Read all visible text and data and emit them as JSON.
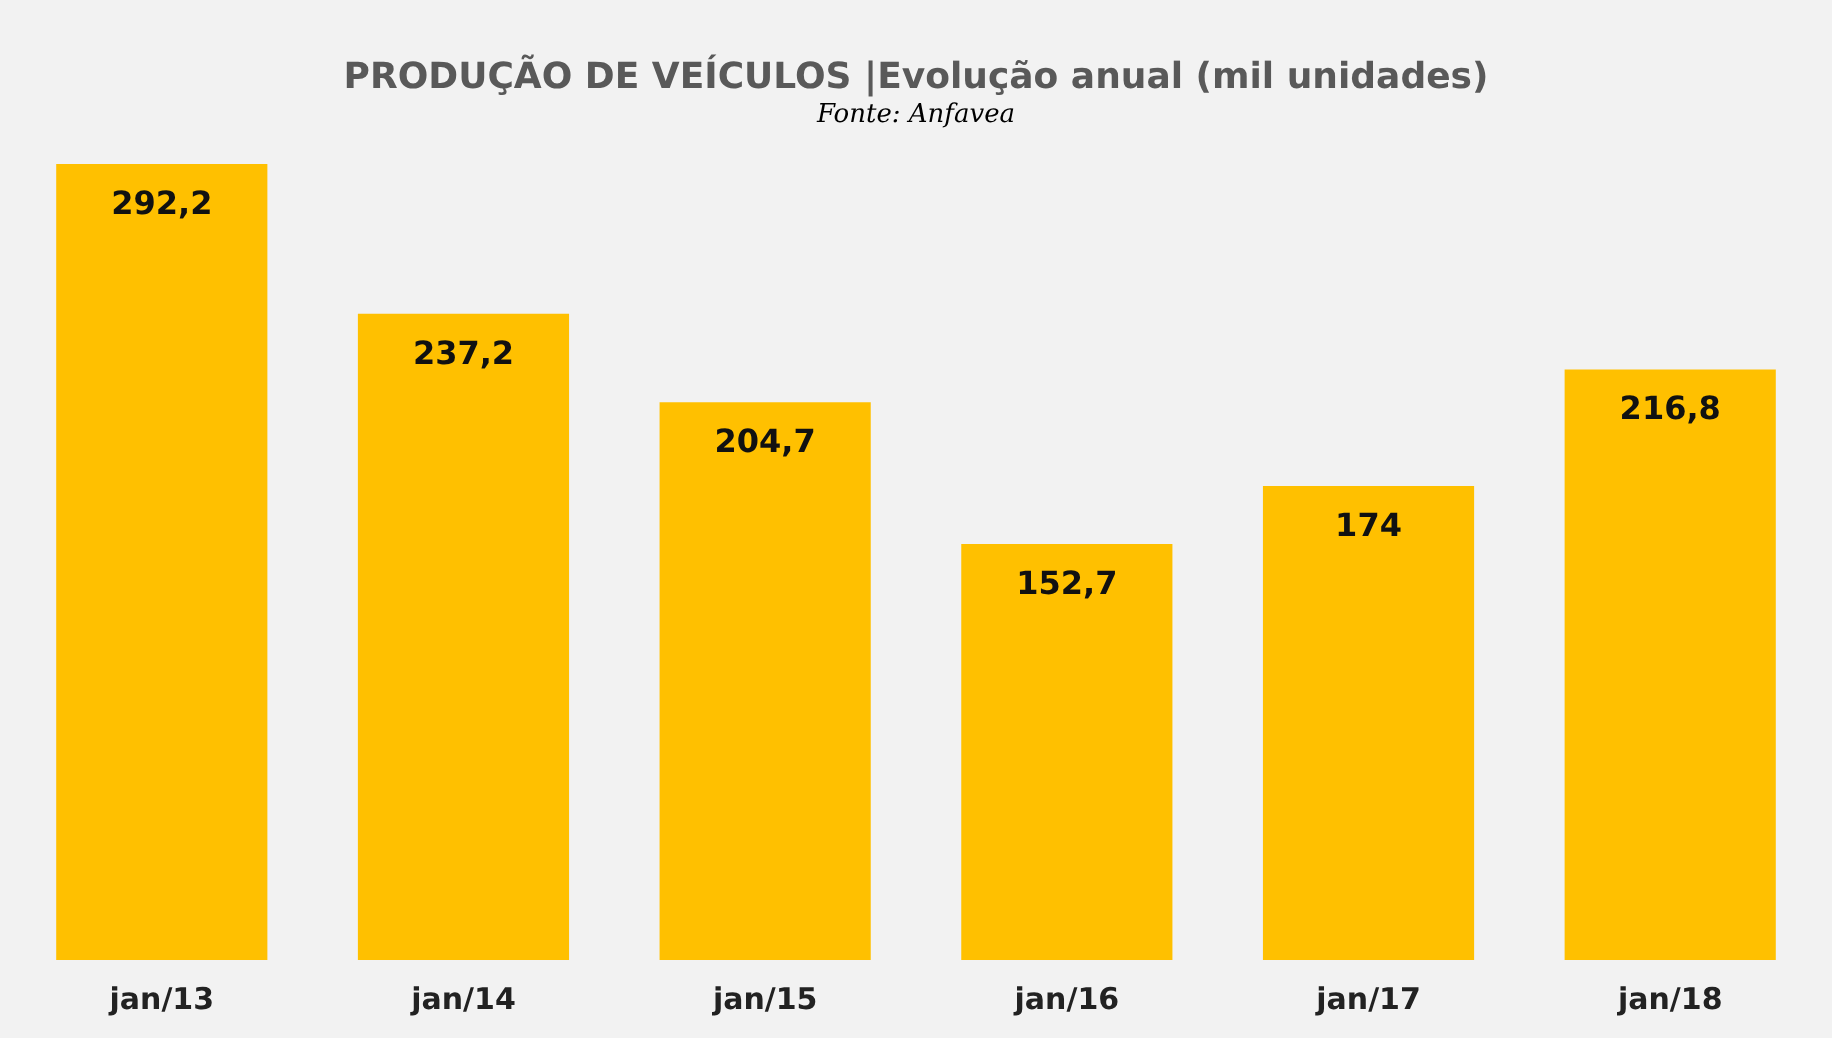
{
  "chart_data": {
    "type": "bar",
    "title": "PRODUÇÃO DE VEÍCULOS |Evolução anual (mil unidades)",
    "annotations": [
      "Fonte: Anfavea"
    ],
    "categories": [
      "jan/13",
      "jan/14",
      "jan/15",
      "jan/16",
      "jan/17",
      "jan/18"
    ],
    "values": [
      292.2,
      237.2,
      204.7,
      152.7,
      174,
      216.8
    ],
    "value_labels": [
      "292,2",
      "237,2",
      "204,7",
      "152,7",
      "174",
      "216,8"
    ],
    "color": "#ffc000",
    "grid": false
  }
}
